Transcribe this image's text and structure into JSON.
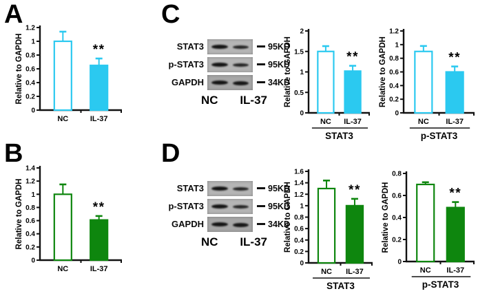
{
  "panels": {
    "a": {
      "letter": "A"
    },
    "b": {
      "letter": "B"
    },
    "c": {
      "letter": "C"
    },
    "d": {
      "letter": "D"
    }
  },
  "colors": {
    "cyan": "#2BC9F0",
    "green": "#0E860E",
    "axis": "#111111"
  },
  "blots": {
    "c": {
      "rows": [
        {
          "protein": "STAT3",
          "marker": "95KD"
        },
        {
          "protein": "p-STAT3",
          "marker": "95KD"
        },
        {
          "protein": "GAPDH",
          "marker": "34KD"
        }
      ],
      "lane_labels": [
        "NC",
        "IL-37"
      ]
    },
    "d": {
      "rows": [
        {
          "protein": "STAT3",
          "marker": "95KD"
        },
        {
          "protein": "p-STAT3",
          "marker": "95KD"
        },
        {
          "protein": "GAPDH",
          "marker": "34KD"
        }
      ],
      "lane_labels": [
        "NC",
        "IL-37"
      ]
    }
  },
  "chart_data": [
    {
      "type": "bar",
      "panel": "A",
      "color": "#2BC9F0",
      "ylabel": "Relative to GAPDH",
      "categories": [
        "NC",
        "IL-37"
      ],
      "values": [
        1.0,
        0.65
      ],
      "errors": [
        0.14,
        0.1
      ],
      "ylim": [
        0,
        1.2
      ],
      "yticks": [
        "0",
        "0.2",
        "0.4",
        "0.6",
        "0.8",
        "1",
        "1.2"
      ],
      "ytick_values": [
        0,
        0.2,
        0.4,
        0.6,
        0.8,
        1,
        1.2
      ],
      "sig": {
        "index": 1,
        "label": "**"
      },
      "group_label": null,
      "grid": false,
      "legend": null
    },
    {
      "type": "bar",
      "panel": "B",
      "color": "#0E860E",
      "ylabel": "Relative to GAPDH",
      "categories": [
        "NC",
        "IL-37"
      ],
      "values": [
        1.0,
        0.61
      ],
      "errors": [
        0.15,
        0.06
      ],
      "ylim": [
        0,
        1.4
      ],
      "yticks": [
        "0",
        "0.2",
        "0.4",
        "0.6",
        "0.8",
        "1",
        "1.2",
        "1.4"
      ],
      "ytick_values": [
        0,
        0.2,
        0.4,
        0.6,
        0.8,
        1,
        1.2,
        1.4
      ],
      "sig": {
        "index": 1,
        "label": "**"
      },
      "group_label": null,
      "grid": false,
      "legend": null
    },
    {
      "type": "bar",
      "panel": "C",
      "color": "#2BC9F0",
      "ylabel": "Relative to GAPDH",
      "categories": [
        "NC",
        "IL-37"
      ],
      "values": [
        1.5,
        1.02
      ],
      "errors": [
        0.13,
        0.13
      ],
      "ylim": [
        0,
        2
      ],
      "yticks": [
        "0",
        "0.5",
        "1",
        "1.5",
        "2"
      ],
      "ytick_values": [
        0,
        0.5,
        1,
        1.5,
        2
      ],
      "sig": {
        "index": 1,
        "label": "**"
      },
      "group_label": "STAT3",
      "grid": false,
      "legend": null
    },
    {
      "type": "bar",
      "panel": "C",
      "color": "#2BC9F0",
      "ylabel": "Relative to GAPDH",
      "categories": [
        "NC",
        "IL-37"
      ],
      "values": [
        0.9,
        0.6
      ],
      "errors": [
        0.08,
        0.08
      ],
      "ylim": [
        0,
        1.2
      ],
      "yticks": [
        "0",
        "0.2",
        "0.4",
        "0.6",
        "0.8",
        "1",
        "1.2"
      ],
      "ytick_values": [
        0,
        0.2,
        0.4,
        0.6,
        0.8,
        1,
        1.2
      ],
      "sig": {
        "index": 1,
        "label": "**"
      },
      "group_label": "p-STAT3",
      "grid": false,
      "legend": null
    },
    {
      "type": "bar",
      "panel": "D",
      "color": "#0E860E",
      "ylabel": "Relative to GAPDH",
      "categories": [
        "NC",
        "IL-37"
      ],
      "values": [
        1.3,
        1.0
      ],
      "errors": [
        0.14,
        0.12
      ],
      "ylim": [
        0,
        1.6
      ],
      "yticks": [
        "0",
        "0.2",
        "0.4",
        "0.6",
        "0.8",
        "1",
        "1.2",
        "1.4",
        "1.6"
      ],
      "ytick_values": [
        0,
        0.2,
        0.4,
        0.6,
        0.8,
        1,
        1.2,
        1.4,
        1.6
      ],
      "sig": {
        "index": 1,
        "label": "**"
      },
      "group_label": "STAT3",
      "grid": false,
      "legend": null
    },
    {
      "type": "bar",
      "panel": "D",
      "color": "#0E860E",
      "ylabel": "Relative to GAPDH",
      "categories": [
        "NC",
        "IL-37"
      ],
      "values": [
        0.7,
        0.49
      ],
      "errors": [
        0.02,
        0.05
      ],
      "ylim": [
        0,
        0.8
      ],
      "yticks": [
        "0",
        "0.2",
        "0.4",
        "0.6",
        "0.8"
      ],
      "ytick_values": [
        0,
        0.2,
        0.4,
        0.6,
        0.8
      ],
      "sig": {
        "index": 1,
        "label": "**"
      },
      "group_label": "p-STAT3",
      "grid": false,
      "legend": null
    }
  ]
}
